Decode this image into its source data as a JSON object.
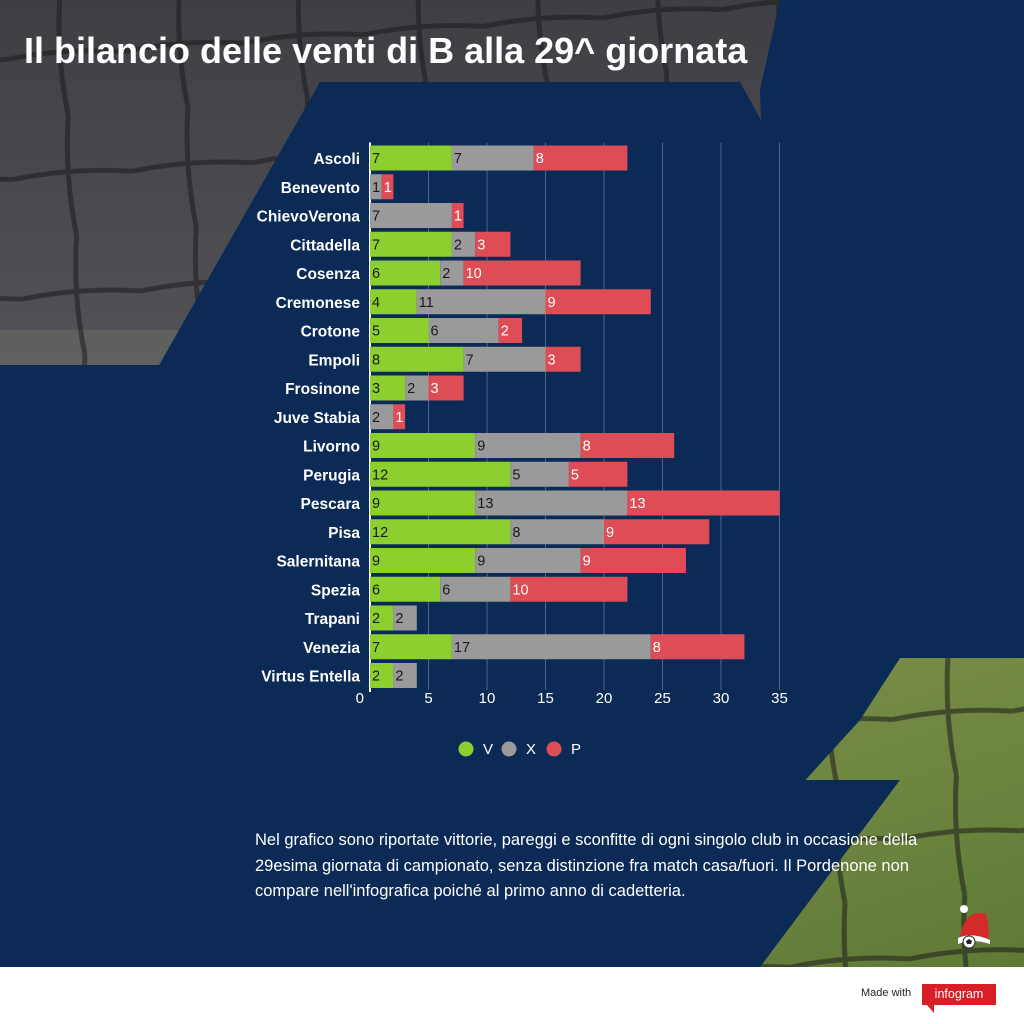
{
  "title": "Il bilancio delle venti di B alla 29^ giornata",
  "colors": {
    "v": "#8dcf2f",
    "x": "#9a9a9a",
    "p": "#de4d55",
    "panel": "#0b2a55",
    "title": "#ffffff"
  },
  "chart_data": {
    "type": "bar",
    "orientation": "horizontal",
    "stacked": true,
    "categories": [
      "Ascoli",
      "Benevento",
      "ChievoVerona",
      "Cittadella",
      "Cosenza",
      "Cremonese",
      "Crotone",
      "Empoli",
      "Frosinone",
      "Juve Stabia",
      "Livorno",
      "Perugia",
      "Pescara",
      "Pisa",
      "Salernitana",
      "Spezia",
      "Trapani",
      "Venezia",
      "Virtus Entella"
    ],
    "series": [
      {
        "name": "V",
        "color": "#8dcf2f",
        "values": [
          7,
          0,
          0,
          7,
          6,
          4,
          5,
          8,
          3,
          0,
          9,
          12,
          9,
          12,
          9,
          6,
          2,
          7,
          2
        ]
      },
      {
        "name": "X",
        "color": "#9a9a9a",
        "values": [
          7,
          1,
          7,
          2,
          2,
          11,
          6,
          7,
          2,
          2,
          9,
          5,
          13,
          8,
          9,
          6,
          2,
          17,
          2
        ]
      },
      {
        "name": "P",
        "color": "#de4d55",
        "values": [
          8,
          1,
          1,
          3,
          10,
          9,
          2,
          3,
          3,
          1,
          8,
          5,
          13,
          9,
          9,
          10,
          0,
          8,
          0
        ]
      }
    ],
    "xticks": [
      0,
      5,
      10,
      15,
      20,
      25,
      30,
      35
    ],
    "xlim": [
      0,
      35
    ],
    "grid": true,
    "legend": "bottom-center",
    "xlabel": "",
    "ylabel": ""
  },
  "note": "Nel grafico sono riportate vittorie, pareggi e sconfitte di ogni singolo club in occasione della 29esima giornata di campionato, senza distinzione fra match casa/fuori. Il Pordenone non compare nell'infografica poiché al primo anno di cadetteria.",
  "footer": {
    "made_with": "Made with",
    "brand": "infogram"
  }
}
